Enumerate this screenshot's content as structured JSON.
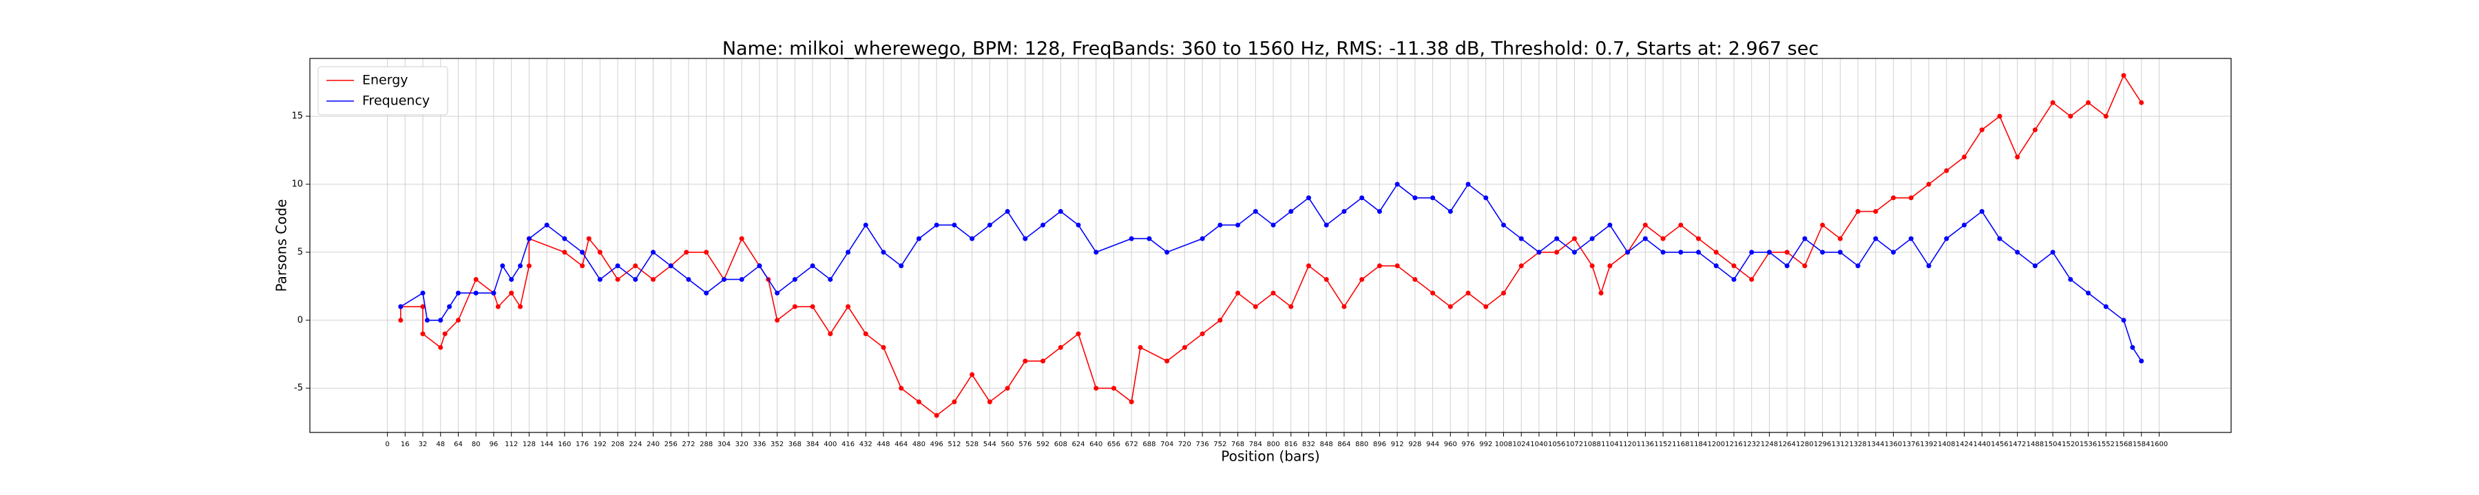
{
  "chart_data": {
    "type": "line",
    "title": "Name: milkoi_wherewego, BPM: 128, FreqBands: 360 to 1560 Hz, RMS: -11.38 dB, Threshold: 0.7, Starts at: 2.967 sec",
    "x_label": "Position (bars)",
    "y_label": "Parsons Code",
    "xlim": [
      -70,
      1665
    ],
    "ylim": [
      -8.25,
      19.25
    ],
    "xticks": [
      0,
      16,
      32,
      48,
      64,
      80,
      96,
      112,
      128,
      144,
      160,
      176,
      192,
      208,
      224,
      240,
      256,
      272,
      288,
      304,
      320,
      336,
      352,
      368,
      384,
      400,
      416,
      432,
      448,
      464,
      480,
      496,
      512,
      528,
      544,
      560,
      576,
      592,
      608,
      624,
      640,
      656,
      672,
      688,
      704,
      720,
      736,
      752,
      768,
      784,
      800,
      816,
      832,
      848,
      864,
      880,
      896,
      912,
      928,
      944,
      960,
      976,
      992,
      1008,
      1024,
      1040,
      1056,
      1072,
      1088,
      1104,
      1120,
      1136,
      1152,
      1168,
      1184,
      1200,
      1216,
      1232,
      1248,
      1264,
      1280,
      1296,
      1312,
      1328,
      1344,
      1360,
      1376,
      1392,
      1408,
      1424,
      1440,
      1456,
      1472,
      1488,
      1504,
      1520,
      1536,
      1552,
      1568,
      1584,
      1600
    ],
    "yticks": [
      -5,
      0,
      5,
      10,
      15
    ],
    "grid": true,
    "legend": "upper left",
    "series": [
      {
        "name": "Energy",
        "color": "#ff0000",
        "x": [
          12,
          12,
          32,
          32,
          48,
          52,
          64,
          80,
          96,
          100,
          112,
          120,
          128,
          128,
          160,
          176,
          182,
          192,
          208,
          224,
          240,
          256,
          270,
          288,
          304,
          320,
          336,
          344,
          352,
          368,
          384,
          400,
          416,
          432,
          448,
          464,
          480,
          496,
          512,
          528,
          544,
          560,
          576,
          592,
          608,
          624,
          640,
          656,
          672,
          680,
          704,
          720,
          736,
          752,
          768,
          784,
          800,
          816,
          832,
          848,
          864,
          880,
          896,
          912,
          928,
          944,
          960,
          976,
          992,
          1008,
          1024,
          1040,
          1056,
          1072,
          1088,
          1096,
          1104,
          1120,
          1136,
          1152,
          1168,
          1184,
          1200,
          1216,
          1232,
          1248,
          1264,
          1280,
          1296,
          1312,
          1328,
          1344,
          1360,
          1376,
          1392,
          1408,
          1424,
          1440,
          1456,
          1472,
          1488,
          1504,
          1520,
          1536,
          1552,
          1568,
          1584
        ],
        "values": [
          0,
          1,
          1,
          -1,
          -2,
          -1,
          0,
          3,
          2,
          1,
          2,
          1,
          4,
          6,
          5,
          4,
          6,
          5,
          3,
          4,
          3,
          4,
          5,
          5,
          3,
          6,
          4,
          3,
          0,
          1,
          1,
          -1,
          1,
          -1,
          -2,
          -5,
          -6,
          -7,
          -6,
          -4,
          -6,
          -5,
          -3,
          -3,
          -2,
          -1,
          -5,
          -5,
          -6,
          -2,
          -3,
          -2,
          -1,
          0,
          2,
          1,
          2,
          1,
          4,
          3,
          1,
          3,
          4,
          4,
          3,
          2,
          1,
          2,
          1,
          2,
          4,
          5,
          5,
          6,
          4,
          2,
          4,
          5,
          7,
          6,
          7,
          6,
          5,
          4,
          3,
          5,
          5,
          4,
          7,
          6,
          8,
          8,
          9,
          9,
          10,
          11,
          12,
          14,
          15,
          12,
          14,
          16,
          15,
          16,
          15,
          18,
          16
        ]
      },
      {
        "name": "Frequency",
        "color": "#0000ff",
        "x": [
          12,
          32,
          36,
          48,
          56,
          64,
          80,
          96,
          104,
          112,
          120,
          128,
          144,
          160,
          176,
          192,
          208,
          224,
          240,
          256,
          272,
          288,
          304,
          320,
          336,
          352,
          368,
          384,
          400,
          416,
          432,
          448,
          464,
          480,
          496,
          512,
          528,
          544,
          560,
          576,
          592,
          608,
          624,
          640,
          672,
          688,
          704,
          736,
          752,
          768,
          784,
          800,
          816,
          832,
          848,
          864,
          880,
          896,
          912,
          928,
          944,
          960,
          976,
          992,
          1008,
          1024,
          1040,
          1056,
          1072,
          1088,
          1104,
          1120,
          1136,
          1152,
          1168,
          1184,
          1200,
          1216,
          1232,
          1248,
          1264,
          1280,
          1296,
          1312,
          1328,
          1344,
          1360,
          1376,
          1392,
          1408,
          1424,
          1440,
          1456,
          1472,
          1488,
          1504,
          1520,
          1536,
          1552,
          1568,
          1576,
          1584
        ],
        "values": [
          1,
          2,
          0,
          0,
          1,
          2,
          2,
          2,
          4,
          3,
          4,
          6,
          7,
          6,
          5,
          3,
          4,
          3,
          5,
          4,
          3,
          2,
          3,
          3,
          4,
          2,
          3,
          4,
          3,
          5,
          7,
          5,
          4,
          6,
          7,
          7,
          6,
          7,
          8,
          6,
          7,
          8,
          7,
          5,
          6,
          6,
          5,
          6,
          7,
          7,
          8,
          7,
          8,
          9,
          7,
          8,
          9,
          8,
          10,
          9,
          9,
          8,
          10,
          9,
          7,
          6,
          5,
          6,
          5,
          6,
          7,
          5,
          6,
          5,
          5,
          5,
          4,
          3,
          5,
          5,
          4,
          6,
          5,
          5,
          4,
          6,
          5,
          6,
          4,
          6,
          7,
          8,
          6,
          5,
          4,
          5,
          3,
          2,
          1,
          0,
          -2,
          -3
        ]
      }
    ]
  }
}
